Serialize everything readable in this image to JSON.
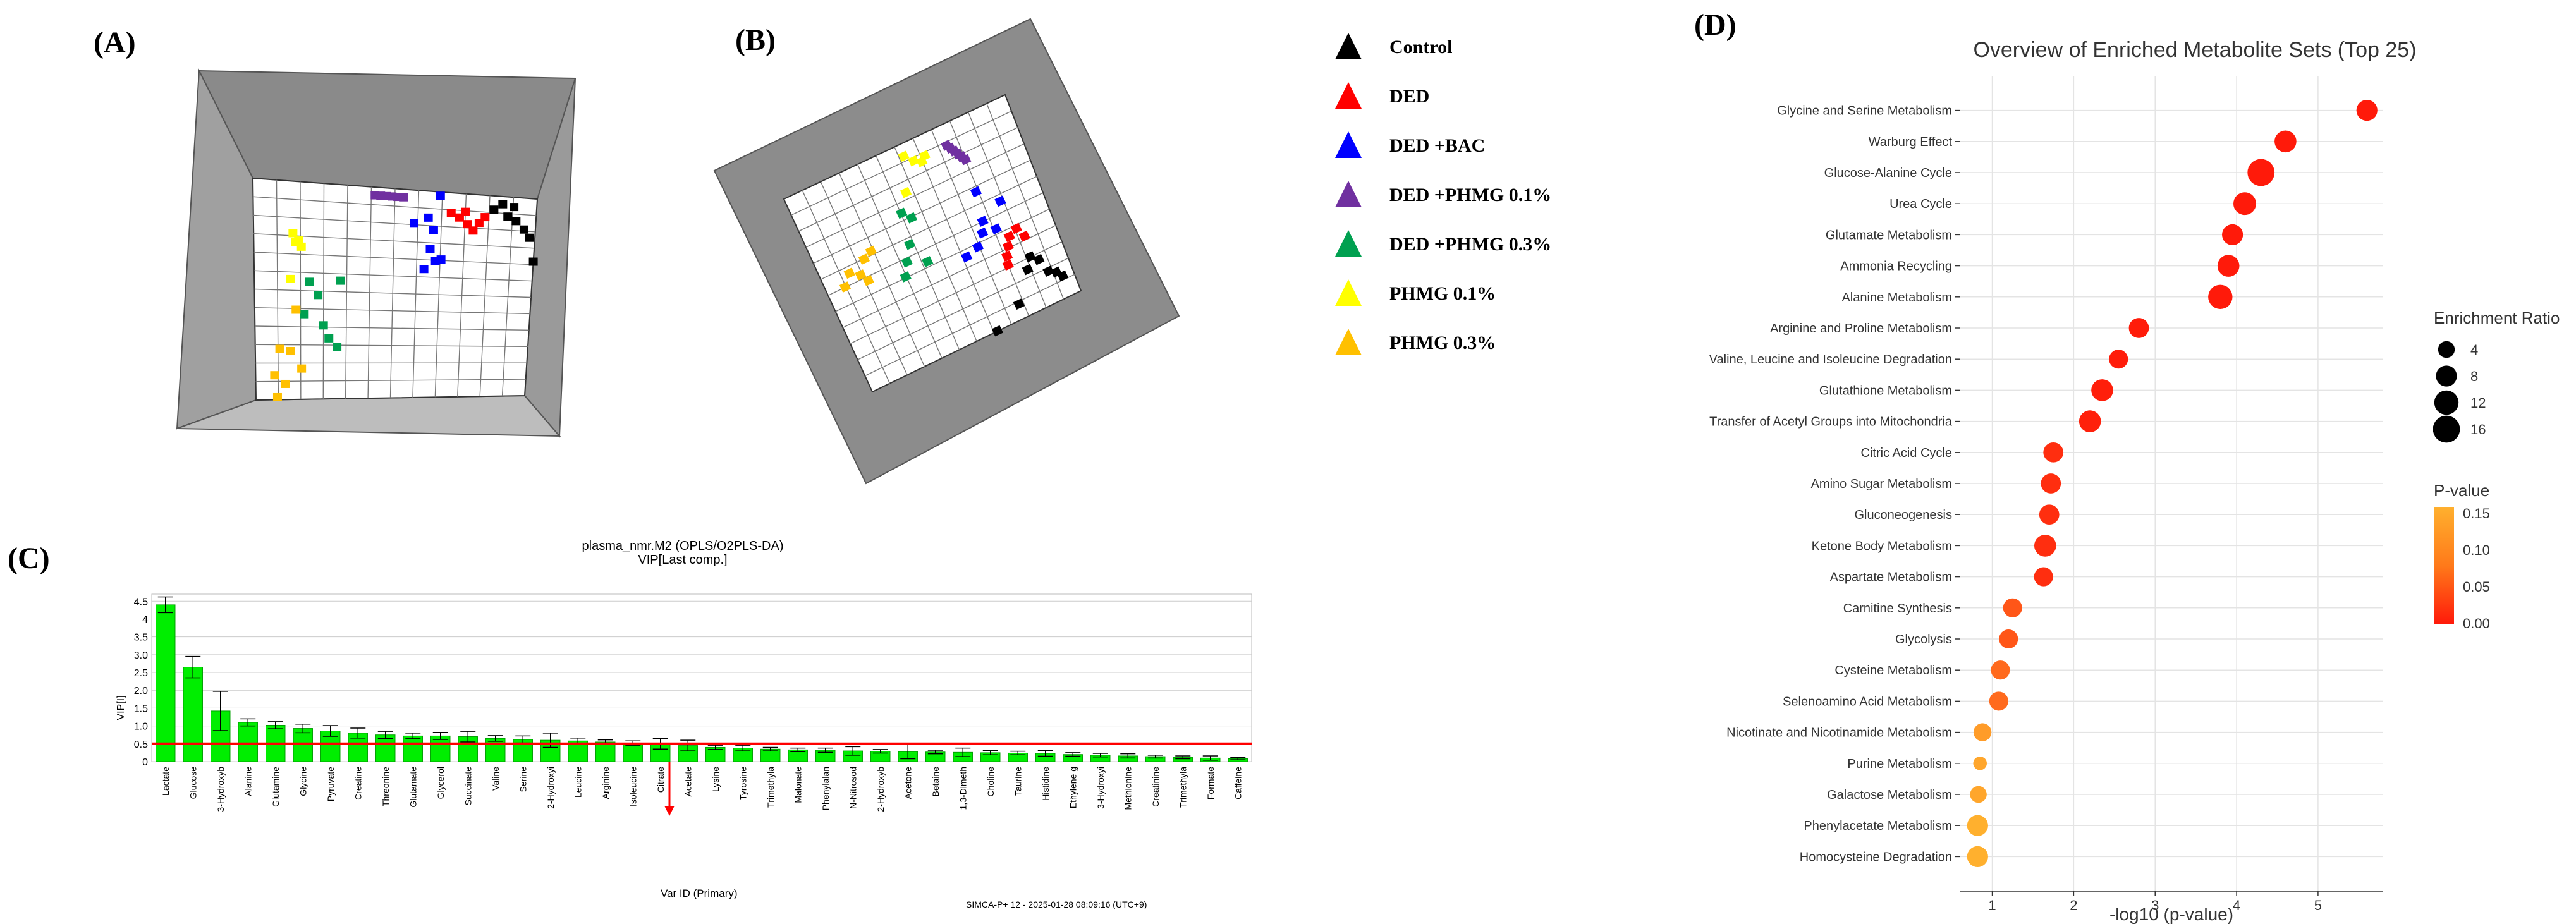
{
  "panels": {
    "A": "(A)",
    "B": "(B)",
    "C": "(C)",
    "D": "(D)"
  },
  "legend": [
    {
      "label": "Control",
      "color": "#000000"
    },
    {
      "label": "DED",
      "color": "#ff0000"
    },
    {
      "label": "DED +BAC",
      "color": "#0000ff"
    },
    {
      "label": "DED +PHMG 0.1%",
      "color": "#7030a0"
    },
    {
      "label": "DED +PHMG 0.3%",
      "color": "#00a050"
    },
    {
      "label": "PHMG 0.1%",
      "color": "#ffff00"
    },
    {
      "label": "PHMG 0.3%",
      "color": "#ffc000"
    }
  ],
  "chart_data": [
    {
      "type": "bar",
      "title": "plasma_nmr.M2 (OPLS/O2PLS-DA)",
      "subtitle": "VIP[Last comp.]",
      "ylabel": "VIP[I]",
      "xlabel": "Var ID (Primary)",
      "footer": "SIMCA-P+ 12 - 2025-01-28 08:09:16 (UTC+9)",
      "ylim": [
        0,
        4.7
      ],
      "yticks": [
        0,
        0.5,
        1,
        1.5,
        2,
        2.5,
        3,
        3.5,
        4,
        4.5
      ],
      "threshold": 0.5,
      "categories": [
        "Lactate",
        "Glucose",
        "3-Hydroxyb",
        "Alanine",
        "Glutamine",
        "Glycine",
        "Pyruvate",
        "Creatine",
        "Threonine",
        "Glutamate",
        "Glycerol",
        "Succinate",
        "Valine",
        "Serine",
        "2-Hydroxyi",
        "Leucine",
        "Arginine",
        "Isoleucine",
        "Citrate",
        "Acetate",
        "Lysine",
        "Tyrosine",
        "Trimethyla",
        "Malonate",
        "Phenylalan",
        "N-Nitrosod",
        "2-Hydroxyb",
        "Acetone",
        "Betaine",
        "1,3-Dimeth",
        "Choline",
        "Taurine",
        "Histidine",
        "Ethylene g",
        "3-Hydroxyi",
        "Methionine",
        "Creatinine",
        "Trimethyla",
        "Formate",
        "Caffeine"
      ],
      "values": [
        4.4,
        2.65,
        1.42,
        1.1,
        1.02,
        0.93,
        0.86,
        0.8,
        0.75,
        0.72,
        0.72,
        0.7,
        0.65,
        0.62,
        0.6,
        0.58,
        0.55,
        0.52,
        0.5,
        0.45,
        0.4,
        0.38,
        0.35,
        0.33,
        0.32,
        0.3,
        0.29,
        0.28,
        0.27,
        0.26,
        0.25,
        0.24,
        0.23,
        0.2,
        0.18,
        0.16,
        0.14,
        0.12,
        0.1,
        0.08
      ],
      "errors": [
        0.22,
        0.3,
        0.55,
        0.1,
        0.1,
        0.12,
        0.15,
        0.14,
        0.1,
        0.08,
        0.1,
        0.15,
        0.08,
        0.1,
        0.2,
        0.08,
        0.06,
        0.06,
        0.15,
        0.15,
        0.06,
        0.08,
        0.05,
        0.05,
        0.06,
        0.12,
        0.05,
        0.2,
        0.05,
        0.12,
        0.06,
        0.05,
        0.08,
        0.05,
        0.05,
        0.06,
        0.04,
        0.04,
        0.06,
        0.03
      ],
      "colors": {
        "bar": "#00ee00",
        "threshold": "#ff0000"
      }
    },
    {
      "type": "scatter",
      "title": "Overview of Enriched Metabolite Sets (Top 25)",
      "xlabel": "-log10 (p-value)",
      "xlim": [
        0.6,
        5.8
      ],
      "xticks": [
        1,
        2,
        3,
        4,
        5
      ],
      "size_legend_title": "Enrichment Ratio",
      "size_legend": [
        4,
        8,
        12,
        16
      ],
      "color_legend_title": "P-value",
      "color_legend_ticks": [
        "0.15",
        "0.10",
        "0.05",
        "0.00"
      ],
      "categories": [
        "Glycine and Serine Metabolism",
        "Warburg Effect",
        "Glucose-Alanine Cycle",
        "Urea Cycle",
        "Glutamate Metabolism",
        "Ammonia Recycling",
        "Alanine Metabolism",
        "Arginine and Proline Metabolism",
        "Valine, Leucine and Isoleucine Degradation",
        "Glutathione Metabolism",
        "Transfer of Acetyl Groups into Mitochondria",
        "Citric Acid Cycle",
        "Amino Sugar Metabolism",
        "Gluconeogenesis",
        "Ketone Body Metabolism",
        "Aspartate Metabolism",
        "Carnitine Synthesis",
        "Glycolysis",
        "Cysteine Metabolism",
        "Selenoamino Acid Metabolism",
        "Nicotinate and Nicotinamide Metabolism",
        "Purine Metabolism",
        "Galactose Metabolism",
        "Phenylacetate Metabolism",
        "Homocysteine Degradation"
      ],
      "x": [
        5.6,
        4.6,
        4.3,
        4.1,
        3.95,
        3.9,
        3.8,
        2.8,
        2.55,
        2.35,
        2.2,
        1.75,
        1.72,
        1.7,
        1.65,
        1.63,
        1.25,
        1.2,
        1.1,
        1.08,
        0.88,
        0.85,
        0.83,
        0.82,
        0.82
      ],
      "ratio": [
        8,
        9,
        16,
        10,
        8,
        9,
        12,
        7,
        6,
        9,
        9,
        7,
        7,
        7,
        9,
        6,
        6,
        6,
        6,
        6,
        5,
        2,
        4,
        8,
        8
      ],
      "pvalue": [
        0.0,
        0.0,
        0.0,
        0.0,
        0.0,
        0.0,
        0.0,
        0.002,
        0.003,
        0.005,
        0.006,
        0.02,
        0.02,
        0.02,
        0.02,
        0.02,
        0.06,
        0.06,
        0.08,
        0.08,
        0.13,
        0.14,
        0.14,
        0.15,
        0.15
      ]
    }
  ]
}
